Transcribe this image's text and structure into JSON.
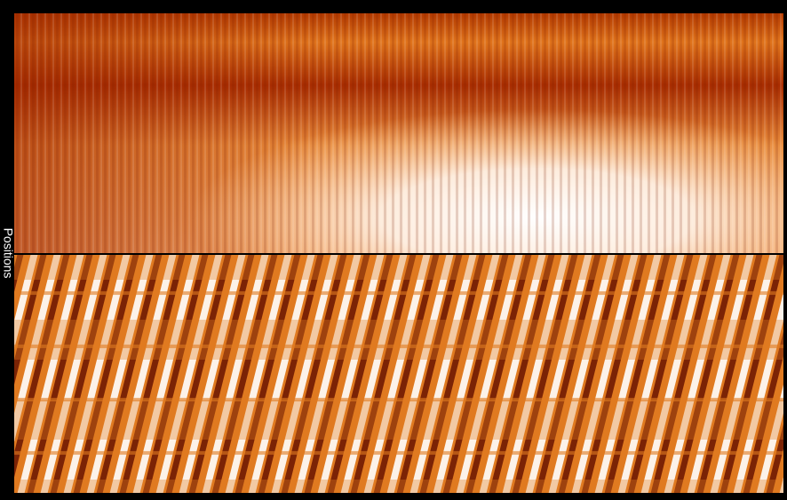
{
  "axis_label": "Positions"
}
